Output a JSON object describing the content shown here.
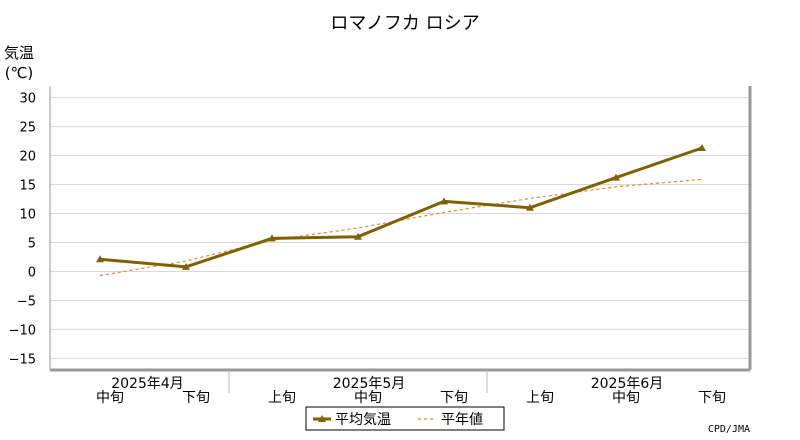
{
  "chart_data": {
    "type": "line",
    "title": "ロマノフカ ロシア",
    "ylabel_line1": "気温",
    "ylabel_line2": "(℃)",
    "ylim": [
      -17,
      32
    ],
    "yticks": [
      30,
      25,
      20,
      15,
      10,
      5,
      0,
      -5,
      -10,
      -15
    ],
    "ytick_labels": [
      "30",
      "25",
      "20",
      "15",
      "10",
      "5",
      "0",
      "−5",
      "−10",
      "−15"
    ],
    "grid": true,
    "x": [
      "中旬",
      "下旬",
      "上旬",
      "中旬",
      "下旬",
      "上旬",
      "中旬",
      "下旬"
    ],
    "months": [
      "2025年4月",
      "2025年5月",
      "2025年6月"
    ],
    "series": [
      {
        "name": "平均気温",
        "color": "#806000",
        "values": [
          2.1,
          0.8,
          5.7,
          6.0,
          12.1,
          11.0,
          16.2,
          21.3
        ]
      },
      {
        "name": "平年値",
        "color": "#f08030",
        "values": [
          -0.7,
          1.8,
          5.4,
          7.5,
          10.2,
          12.6,
          14.6,
          15.9
        ]
      }
    ],
    "legend_position": "bottom-center",
    "source": "CPD/JMA"
  }
}
